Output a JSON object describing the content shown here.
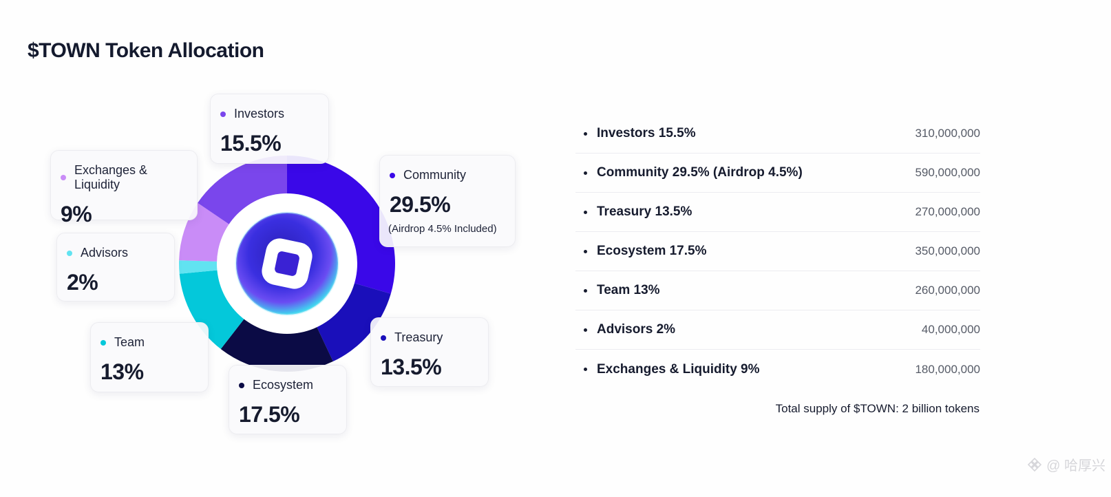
{
  "title": "$TOWN Token Allocation",
  "chart_data": {
    "type": "pie",
    "style": "donut",
    "categories": [
      "Community",
      "Treasury",
      "Ecosystem",
      "Team",
      "Advisors",
      "Exchanges & Liquidity",
      "Investors"
    ],
    "values": [
      29.5,
      13.5,
      17.5,
      13,
      2,
      9,
      15.5
    ],
    "colors": [
      "#3a08e8",
      "#1a0fba",
      "#0b0b45",
      "#04c8da",
      "#61e3f1",
      "#c98cf7",
      "#7a46ec"
    ],
    "unit": "%"
  },
  "cards": {
    "investors": {
      "label": "Investors",
      "pct": "15.5%"
    },
    "exchanges": {
      "label": "Exchanges & Liquidity",
      "pct": "9%"
    },
    "community": {
      "label": "Community",
      "pct": "29.5%",
      "note": "(Airdrop 4.5% Included)"
    },
    "advisors": {
      "label": "Advisors",
      "pct": "2%"
    },
    "team": {
      "label": "Team",
      "pct": "13%"
    },
    "treasury": {
      "label": "Treasury",
      "pct": "13.5%"
    },
    "ecosystem": {
      "label": "Ecosystem",
      "pct": "17.5%"
    }
  },
  "table": [
    {
      "label": "Investors 15.5%",
      "amount": "310,000,000"
    },
    {
      "label": "Community 29.5% (Airdrop 4.5%)",
      "amount": "590,000,000"
    },
    {
      "label": "Treasury 13.5%",
      "amount": "270,000,000"
    },
    {
      "label": "Ecosystem 17.5%",
      "amount": "350,000,000"
    },
    {
      "label": "Team 13%",
      "amount": "260,000,000"
    },
    {
      "label": "Advisors 2%",
      "amount": "40,000,000"
    },
    {
      "label": "Exchanges & Liquidity 9%",
      "amount": "180,000,000"
    }
  ],
  "total": "Total supply of $TOWN: 2 billion tokens",
  "watermark": "@ 哈厚兴"
}
